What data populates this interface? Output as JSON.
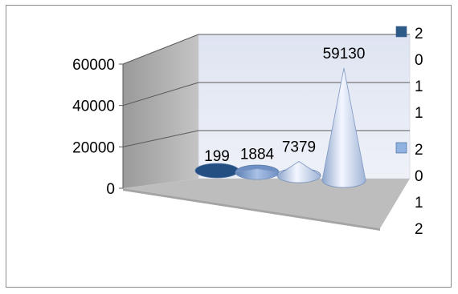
{
  "chart_data": {
    "type": "cone-3d",
    "y_ticks": [
      "0",
      "20000",
      "40000",
      "60000"
    ],
    "ylim": [
      0,
      60000
    ],
    "grid": true,
    "series": [
      {
        "values": [
          199,
          1884,
          7379,
          59130
        ]
      }
    ],
    "data_labels": [
      "199",
      "1884",
      "7379",
      "59130"
    ],
    "legend": {
      "placement": "right",
      "entries": [
        {
          "label_chars": [
            "2",
            "0",
            "1",
            "1"
          ],
          "color": "#2e5a87"
        },
        {
          "label_chars": [
            "2",
            "0",
            "1",
            "2"
          ],
          "color": "#8fb2e0"
        }
      ]
    },
    "colors": {
      "wall": "#e4e8f4",
      "side_wall": "#a8a8a8",
      "floor": "#bfbfbf",
      "gridline": "#5a5a5a"
    }
  }
}
